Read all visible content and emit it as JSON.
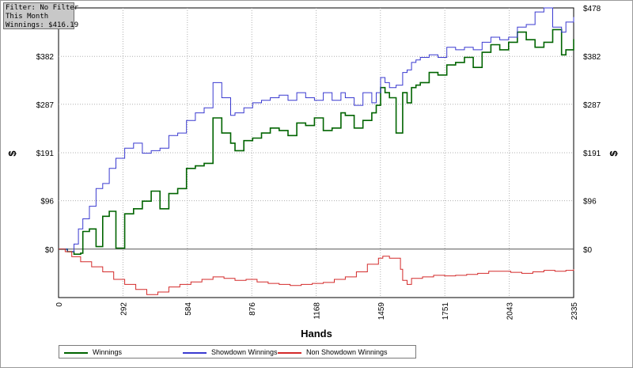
{
  "info_box": {
    "filter": "Filter: No Filter",
    "period": "This Month",
    "winnings": "Winnings: $416.19"
  },
  "colors": {
    "winnings": "#006400",
    "showdown": "#3a3ad0",
    "non_showdown": "#d42a2a",
    "zero_line": "#555555",
    "grid": "#b0b0b0"
  },
  "chart_data": {
    "type": "line",
    "xlabel": "Hands",
    "ylabel": "$",
    "xlim": [
      0,
      2335
    ],
    "ylim": [
      -96,
      478
    ],
    "x_ticks": [
      0,
      292,
      584,
      876,
      1168,
      1459,
      1751,
      2043,
      2335
    ],
    "x_tick_labels": [
      "0",
      "292",
      "584",
      "876",
      "1168",
      "1459",
      "1751",
      "2043",
      "2335"
    ],
    "y_ticks": [
      0,
      96,
      191,
      287,
      382,
      478
    ],
    "y_tick_labels": [
      "$0",
      "$96",
      "$191",
      "$287",
      "$382",
      "$478"
    ],
    "grid": true,
    "legend_position": "bottom",
    "series": [
      {
        "name": "Winnings",
        "color": "#006400",
        "x": [
          0,
          40,
          70,
          100,
          110,
          140,
          170,
          200,
          230,
          260,
          300,
          340,
          380,
          420,
          460,
          500,
          540,
          580,
          620,
          660,
          700,
          740,
          780,
          800,
          840,
          880,
          920,
          960,
          1000,
          1040,
          1080,
          1120,
          1160,
          1200,
          1240,
          1280,
          1300,
          1340,
          1380,
          1420,
          1440,
          1460,
          1480,
          1500,
          1530,
          1560,
          1580,
          1600,
          1620,
          1640,
          1680,
          1720,
          1760,
          1800,
          1840,
          1880,
          1920,
          1960,
          2000,
          2040,
          2080,
          2120,
          2160,
          2200,
          2240,
          2280,
          2300,
          2335
        ],
        "values": [
          0,
          -5,
          -10,
          -8,
          35,
          40,
          5,
          65,
          75,
          2,
          70,
          80,
          95,
          115,
          80,
          110,
          120,
          160,
          165,
          170,
          260,
          230,
          210,
          195,
          215,
          220,
          230,
          240,
          235,
          225,
          250,
          245,
          260,
          235,
          240,
          270,
          265,
          240,
          255,
          270,
          285,
          320,
          310,
          300,
          230,
          310,
          290,
          320,
          325,
          330,
          350,
          345,
          365,
          370,
          380,
          360,
          390,
          405,
          395,
          410,
          430,
          415,
          400,
          410,
          435,
          385,
          395,
          416
        ]
      },
      {
        "name": "Showdown Winnings",
        "color": "#3a3ad0",
        "x": [
          0,
          40,
          70,
          90,
          110,
          140,
          170,
          200,
          230,
          260,
          300,
          340,
          380,
          420,
          460,
          500,
          540,
          580,
          620,
          660,
          700,
          740,
          780,
          800,
          840,
          880,
          920,
          960,
          1000,
          1040,
          1080,
          1120,
          1160,
          1200,
          1240,
          1280,
          1300,
          1340,
          1380,
          1420,
          1440,
          1460,
          1480,
          1500,
          1530,
          1560,
          1580,
          1600,
          1620,
          1640,
          1680,
          1720,
          1760,
          1800,
          1840,
          1880,
          1920,
          1960,
          2000,
          2040,
          2080,
          2120,
          2160,
          2200,
          2240,
          2280,
          2300,
          2335
        ],
        "values": [
          0,
          -5,
          10,
          40,
          60,
          85,
          120,
          130,
          160,
          180,
          200,
          210,
          190,
          195,
          200,
          225,
          230,
          255,
          270,
          280,
          330,
          300,
          265,
          270,
          280,
          290,
          295,
          300,
          305,
          295,
          310,
          300,
          295,
          310,
          295,
          310,
          300,
          285,
          310,
          290,
          310,
          340,
          330,
          320,
          325,
          350,
          355,
          370,
          375,
          380,
          385,
          380,
          400,
          395,
          400,
          395,
          410,
          420,
          415,
          420,
          440,
          445,
          470,
          478,
          440,
          430,
          450,
          460
        ]
      },
      {
        "name": "Non Showdown Winnings",
        "color": "#d42a2a",
        "x": [
          0,
          30,
          60,
          100,
          150,
          200,
          250,
          300,
          350,
          400,
          450,
          500,
          550,
          600,
          650,
          700,
          750,
          800,
          850,
          900,
          950,
          1000,
          1050,
          1100,
          1150,
          1200,
          1250,
          1300,
          1350,
          1400,
          1450,
          1470,
          1500,
          1550,
          1560,
          1580,
          1600,
          1650,
          1700,
          1750,
          1800,
          1850,
          1900,
          1950,
          2000,
          2050,
          2100,
          2150,
          2200,
          2250,
          2300,
          2335
        ],
        "values": [
          0,
          -5,
          -15,
          -25,
          -35,
          -45,
          -60,
          -70,
          -80,
          -90,
          -85,
          -75,
          -70,
          -65,
          -60,
          -55,
          -58,
          -62,
          -60,
          -65,
          -68,
          -70,
          -72,
          -70,
          -68,
          -66,
          -60,
          -55,
          -45,
          -30,
          -18,
          -14,
          -18,
          -40,
          -62,
          -70,
          -58,
          -55,
          -52,
          -53,
          -52,
          -50,
          -48,
          -44,
          -44,
          -46,
          -48,
          -45,
          -42,
          -44,
          -42,
          -40
        ]
      }
    ]
  }
}
